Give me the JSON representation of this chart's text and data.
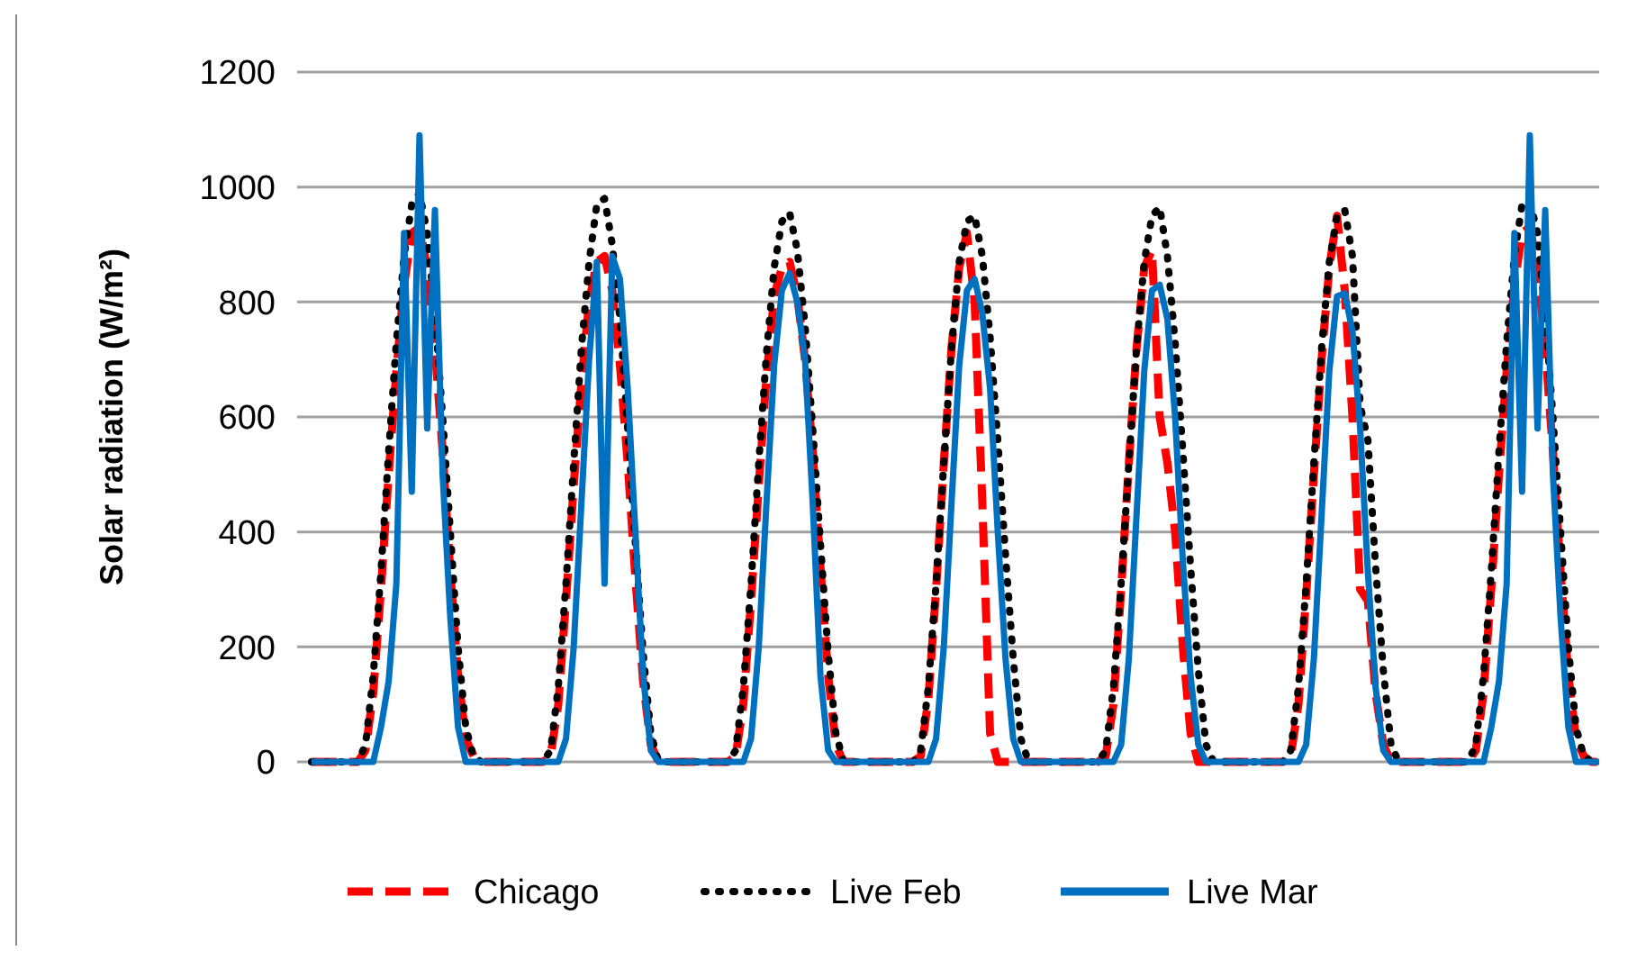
{
  "chart_data": {
    "type": "line",
    "ylabel": "Solar radiation (W/m²)",
    "ylim": [
      0,
      1200
    ],
    "yticks": [
      0,
      200,
      400,
      600,
      800,
      1000,
      1200
    ],
    "grid": "y",
    "legend": "bottom",
    "categories": [
      null,
      null,
      null,
      null,
      null,
      null,
      null,
      null,
      null,
      null,
      null,
      null,
      null,
      null,
      null,
      null,
      null,
      null,
      null,
      null,
      null,
      null,
      null,
      null,
      null,
      null,
      null,
      null,
      null,
      null,
      null,
      null,
      null,
      null,
      null,
      null,
      null,
      null,
      null,
      null,
      null,
      null,
      null,
      null,
      null,
      null,
      null,
      null,
      null,
      null,
      null,
      null,
      null,
      null,
      null,
      null,
      null,
      null,
      null,
      null,
      null,
      null,
      null,
      null,
      null,
      null,
      null,
      null,
      null,
      null,
      null,
      null,
      null,
      null,
      null,
      null,
      null,
      null,
      null,
      null,
      null,
      null,
      null,
      null,
      null,
      null,
      null,
      null,
      null,
      null,
      null,
      null,
      null,
      null,
      null,
      null,
      null,
      null,
      null,
      null,
      null,
      null,
      null,
      null,
      null,
      null,
      null,
      null,
      null,
      null,
      null,
      null,
      null,
      null,
      null,
      null,
      null,
      null,
      null,
      null,
      null,
      null,
      null,
      null,
      null,
      null,
      null,
      null,
      null,
      null,
      null,
      null,
      null,
      null,
      null,
      null,
      null,
      null,
      null,
      null,
      null,
      null,
      null,
      null,
      null,
      null,
      null,
      null,
      null,
      null,
      null,
      null,
      null,
      null,
      null,
      null,
      null,
      null,
      null,
      null,
      null,
      null,
      null,
      null,
      null,
      null,
      null,
      null
    ],
    "series": [
      {
        "name": "Chicago",
        "color": "#ff0000",
        "line_style": "dashed",
        "values": [
          0,
          0,
          0,
          0,
          0,
          0,
          0,
          20,
          120,
          300,
          500,
          680,
          830,
          920,
          930,
          860,
          720,
          540,
          330,
          150,
          40,
          10,
          0,
          0,
          0,
          0,
          0,
          0,
          0,
          0,
          0,
          10,
          100,
          280,
          480,
          660,
          800,
          870,
          880,
          820,
          690,
          520,
          320,
          140,
          30,
          0,
          0,
          0,
          0,
          0,
          0,
          0,
          0,
          0,
          0,
          10,
          100,
          280,
          480,
          670,
          810,
          860,
          870,
          810,
          700,
          540,
          340,
          150,
          30,
          0,
          0,
          0,
          0,
          0,
          0,
          0,
          0,
          0,
          0,
          10,
          110,
          300,
          520,
          720,
          860,
          920,
          800,
          450,
          50,
          0,
          0,
          0,
          0,
          0,
          0,
          0,
          0,
          0,
          0,
          0,
          0,
          0,
          0,
          10,
          100,
          300,
          520,
          720,
          860,
          890,
          600,
          520,
          400,
          200,
          50,
          0,
          0,
          0,
          0,
          0,
          0,
          0,
          0,
          0,
          0,
          0,
          0,
          10,
          100,
          290,
          500,
          700,
          860,
          950,
          820,
          600,
          300,
          280,
          120,
          30,
          0,
          0,
          0,
          0,
          0,
          0,
          0,
          0,
          0,
          0,
          0,
          20,
          120,
          300,
          500,
          680,
          830,
          920,
          930,
          860,
          720,
          540,
          330,
          150,
          40,
          10,
          0,
          0
        ]
      },
      {
        "name": "Live Feb",
        "color": "#000000",
        "line_style": "dotted",
        "values": [
          0,
          0,
          0,
          0,
          0,
          0,
          0,
          30,
          150,
          330,
          540,
          730,
          880,
          970,
          990,
          920,
          780,
          600,
          400,
          200,
          60,
          10,
          0,
          0,
          0,
          0,
          0,
          0,
          0,
          0,
          0,
          20,
          130,
          310,
          520,
          720,
          870,
          970,
          980,
          900,
          770,
          580,
          380,
          190,
          50,
          0,
          0,
          0,
          0,
          0,
          0,
          0,
          0,
          0,
          0,
          20,
          130,
          310,
          520,
          710,
          860,
          940,
          955,
          890,
          760,
          580,
          380,
          190,
          50,
          0,
          0,
          0,
          0,
          0,
          0,
          0,
          0,
          0,
          0,
          20,
          130,
          310,
          520,
          720,
          870,
          940,
          950,
          880,
          740,
          560,
          360,
          180,
          40,
          0,
          0,
          0,
          0,
          0,
          0,
          0,
          0,
          0,
          0,
          20,
          130,
          310,
          520,
          720,
          870,
          950,
          965,
          880,
          730,
          540,
          340,
          160,
          30,
          0,
          0,
          0,
          0,
          0,
          0,
          0,
          0,
          0,
          0,
          20,
          130,
          310,
          520,
          720,
          870,
          950,
          960,
          880,
          620,
          560,
          340,
          160,
          30,
          0,
          0,
          0,
          0,
          0,
          0,
          0,
          0,
          0,
          0,
          30,
          150,
          330,
          540,
          730,
          880,
          970,
          975,
          920,
          780,
          600,
          400,
          200,
          60,
          10,
          0,
          0
        ]
      },
      {
        "name": "Live Mar",
        "color": "#0070c0",
        "line_style": "solid",
        "values": [
          0,
          0,
          0,
          0,
          0,
          0,
          0,
          0,
          0,
          60,
          140,
          310,
          920,
          470,
          1090,
          580,
          960,
          500,
          250,
          60,
          0,
          0,
          0,
          0,
          0,
          0,
          0,
          0,
          0,
          0,
          0,
          0,
          0,
          40,
          200,
          450,
          700,
          870,
          310,
          880,
          840,
          650,
          400,
          150,
          20,
          0,
          0,
          0,
          0,
          0,
          0,
          0,
          0,
          0,
          0,
          0,
          0,
          40,
          200,
          450,
          690,
          820,
          850,
          800,
          700,
          450,
          150,
          20,
          0,
          0,
          0,
          0,
          0,
          0,
          0,
          0,
          0,
          0,
          0,
          0,
          0,
          40,
          200,
          450,
          690,
          820,
          840,
          780,
          650,
          400,
          180,
          40,
          0,
          0,
          0,
          0,
          0,
          0,
          0,
          0,
          0,
          0,
          0,
          0,
          0,
          30,
          180,
          430,
          680,
          820,
          830,
          770,
          600,
          350,
          150,
          30,
          0,
          0,
          0,
          0,
          0,
          0,
          0,
          0,
          0,
          0,
          0,
          0,
          0,
          30,
          180,
          430,
          680,
          810,
          815,
          750,
          580,
          330,
          130,
          20,
          0,
          0,
          0,
          0,
          0,
          0,
          0,
          0,
          0,
          0,
          0,
          0,
          0,
          60,
          140,
          310,
          920,
          470,
          1090,
          580,
          960,
          500,
          250,
          60,
          0,
          0,
          0,
          0
        ]
      }
    ]
  }
}
